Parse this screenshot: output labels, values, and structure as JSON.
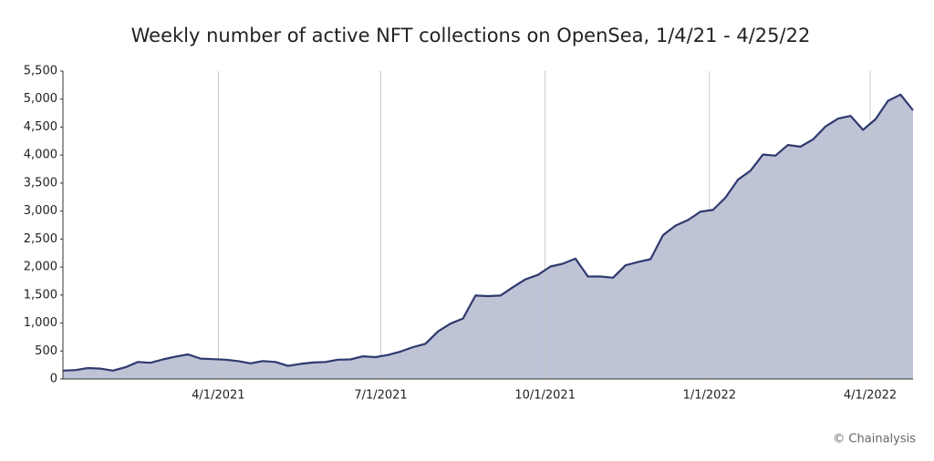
{
  "chart_data": {
    "type": "area",
    "title": "Weekly number of active NFT collections on OpenSea, 1/4/21 - 4/25/22",
    "credit": "© Chainalysis",
    "x": [
      "2021-01-04",
      "2021-01-11",
      "2021-01-18",
      "2021-01-25",
      "2021-02-01",
      "2021-02-08",
      "2021-02-15",
      "2021-02-22",
      "2021-03-01",
      "2021-03-08",
      "2021-03-15",
      "2021-03-22",
      "2021-03-29",
      "2021-04-05",
      "2021-04-12",
      "2021-04-19",
      "2021-04-26",
      "2021-05-03",
      "2021-05-10",
      "2021-05-17",
      "2021-05-24",
      "2021-05-31",
      "2021-06-07",
      "2021-06-14",
      "2021-06-21",
      "2021-06-28",
      "2021-07-05",
      "2021-07-12",
      "2021-07-19",
      "2021-07-26",
      "2021-08-02",
      "2021-08-09",
      "2021-08-16",
      "2021-08-23",
      "2021-08-30",
      "2021-09-06",
      "2021-09-13",
      "2021-09-20",
      "2021-09-27",
      "2021-10-04",
      "2021-10-11",
      "2021-10-18",
      "2021-10-25",
      "2021-11-01",
      "2021-11-08",
      "2021-11-15",
      "2021-11-22",
      "2021-11-29",
      "2021-12-06",
      "2021-12-13",
      "2021-12-20",
      "2021-12-27",
      "2022-01-03",
      "2022-01-10",
      "2022-01-17",
      "2022-01-24",
      "2022-01-31",
      "2022-02-07",
      "2022-02-14",
      "2022-02-21",
      "2022-02-28",
      "2022-03-07",
      "2022-03-14",
      "2022-03-21",
      "2022-03-28",
      "2022-04-04",
      "2022-04-11",
      "2022-04-18",
      "2022-04-25"
    ],
    "values": [
      150,
      160,
      195,
      185,
      150,
      210,
      305,
      290,
      350,
      400,
      440,
      365,
      355,
      345,
      320,
      280,
      320,
      305,
      235,
      270,
      295,
      305,
      345,
      350,
      405,
      390,
      430,
      490,
      570,
      630,
      850,
      990,
      1080,
      1490,
      1480,
      1490,
      1640,
      1780,
      1860,
      2010,
      2060,
      2150,
      1830,
      1830,
      1810,
      2030,
      2090,
      2140,
      2570,
      2740,
      2840,
      2990,
      3020,
      3240,
      3560,
      3720,
      4010,
      3990,
      4180,
      4150,
      4280,
      4510,
      4650,
      4700,
      4450,
      4640,
      4970,
      5080,
      4800
    ],
    "line_color": "#2e3a6e",
    "fill_color": "#bfc3d6",
    "xlim": [
      "2021-01-04",
      "2022-04-25"
    ],
    "xticks": [
      {
        "value": "2021-04-01",
        "label": "4/1/2021"
      },
      {
        "value": "2021-07-01",
        "label": "7/1/2021"
      },
      {
        "value": "2021-10-01",
        "label": "10/1/2021"
      },
      {
        "value": "2022-01-01",
        "label": "1/1/2022"
      },
      {
        "value": "2022-04-01",
        "label": "4/1/2022"
      }
    ],
    "ylim": [
      0,
      5500
    ],
    "yticks": [
      0,
      500,
      {
        "value": 1000,
        "label": "1,000"
      },
      {
        "value": 1500,
        "label": "1,500"
      },
      {
        "value": 2000,
        "label": "2,000"
      },
      {
        "value": 2500,
        "label": "2,500"
      },
      {
        "value": 3000,
        "label": "3,000"
      },
      {
        "value": 3500,
        "label": "3,500"
      },
      {
        "value": 4000,
        "label": "4,000"
      },
      {
        "value": 4500,
        "label": "4,500"
      },
      {
        "value": 5000,
        "label": "5,000"
      },
      {
        "value": 5500,
        "label": "5,500"
      }
    ],
    "grid": "x"
  }
}
